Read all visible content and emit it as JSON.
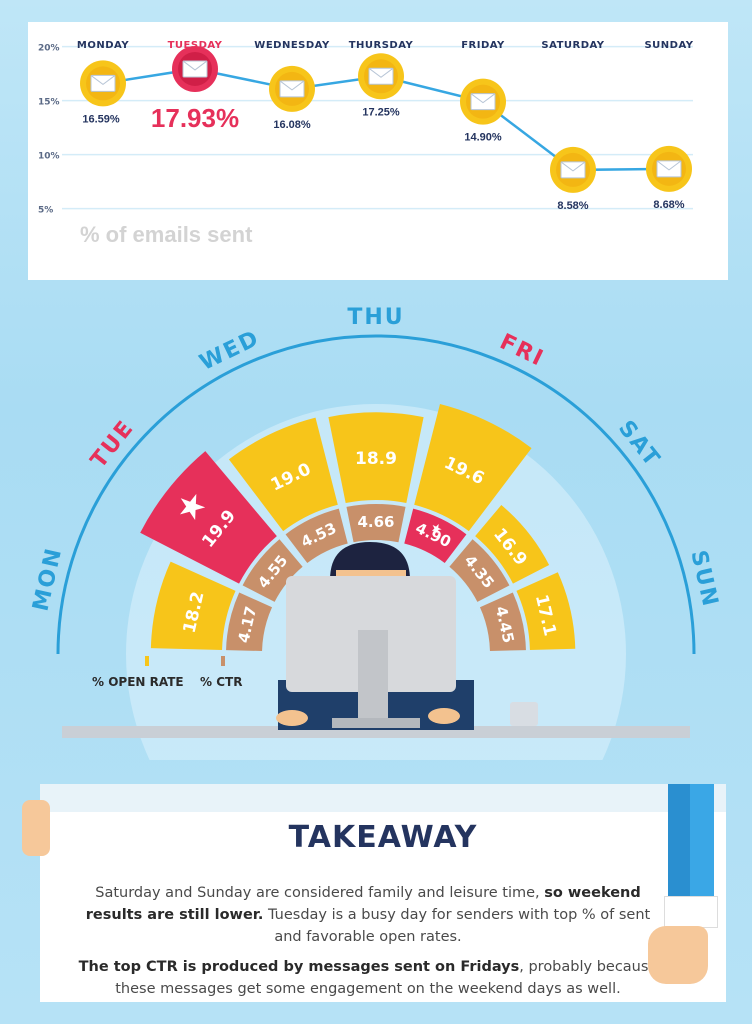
{
  "line_chart": {
    "days": [
      "MONDAY",
      "TUESDAY",
      "WEDNESDAY",
      "THURSDAY",
      "FRIDAY",
      "SATURDAY",
      "SUNDAY"
    ],
    "ytick_labels": [
      "20%",
      "15%",
      "10%",
      "5%"
    ],
    "caption": "% of emails sent"
  },
  "arc_chart": {
    "day_labels": [
      "MON",
      "TUE",
      "WED",
      "THU",
      "FRI",
      "SAT",
      "SUN"
    ],
    "legend_open": "% OPEN RATE",
    "legend_ctr": "% CTR"
  },
  "takeaway": {
    "title": "TAKEAWAY",
    "p1_a": "Saturday and Sunday are considered family and leisure time, ",
    "p1_b": "so weekend results are still lower.",
    "p1_c": " Tuesday is a busy day for senders with top % of sent and favorable open rates.",
    "p2_a": "The top CTR is produced by messages sent on Fridays",
    "p2_b": ", probably because these messages get some engagement on the weekend days as well."
  },
  "colors": {
    "accent": "#e6305a",
    "yellow": "#f7c51a",
    "navy": "#24345f",
    "blue": "#2a9fd8",
    "ctr": "#c8906a"
  },
  "chart_data": [
    {
      "type": "line",
      "categories": [
        "MONDAY",
        "TUESDAY",
        "WEDNESDAY",
        "THURSDAY",
        "FRIDAY",
        "SATURDAY",
        "SUNDAY"
      ],
      "values": [
        16.59,
        17.93,
        16.08,
        17.25,
        14.9,
        8.58,
        8.68
      ],
      "value_labels": [
        "16.59%",
        "17.93%",
        "16.08%",
        "17.25%",
        "14.90%",
        "8.58%",
        "8.68%"
      ],
      "highlight": "TUESDAY",
      "ylim": [
        5,
        20
      ],
      "yticks": [
        5,
        10,
        15,
        20
      ],
      "grid": true
    },
    {
      "type": "bar",
      "layout": "radial",
      "categories": [
        "MON",
        "TUE",
        "WED",
        "THU",
        "FRI",
        "SAT",
        "SUN"
      ],
      "series": [
        {
          "name": "% OPEN RATE",
          "values": [
            18.2,
            19.9,
            19.0,
            18.9,
            19.6,
            16.9,
            17.1
          ],
          "labels": [
            "18.2",
            "19.9",
            "19.0",
            "18.9",
            "19.6",
            "16.9",
            "17.1"
          ]
        },
        {
          "name": "% CTR",
          "values": [
            4.17,
            4.55,
            4.53,
            4.66,
            4.9,
            4.35,
            4.45
          ],
          "labels": [
            "4.17",
            "4.55",
            "4.53",
            "4.66",
            "4.90",
            "4.35",
            "4.45"
          ]
        }
      ],
      "highlights": {
        "% OPEN RATE": "TUE",
        "% CTR": "FRI"
      }
    }
  ]
}
